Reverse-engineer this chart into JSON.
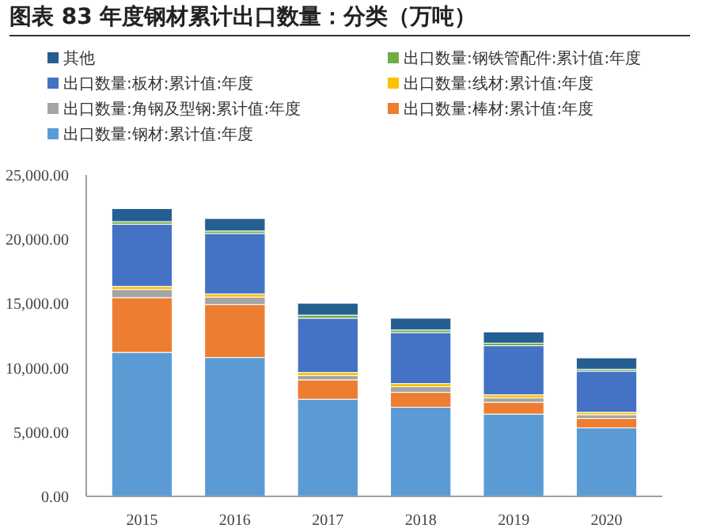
{
  "chart_data": {
    "type": "bar",
    "stacked": true,
    "title": "图表 83 年度钢材累计出口数量：分类（万吨）",
    "categories": [
      "2015",
      "2016",
      "2017",
      "2018",
      "2019",
      "2020"
    ],
    "series": [
      {
        "name": "出口数量:钢材:累计值:年度",
        "color": "#5b9bd5",
        "values": [
          11200,
          10800,
          7560,
          6930,
          6400,
          5330
        ]
      },
      {
        "name": "出口数量:棒材:累计值:年度",
        "color": "#ed7d31",
        "values": [
          4260,
          4120,
          1500,
          1160,
          920,
          730
        ]
      },
      {
        "name": "出口数量:角钢及型钢:累计值:年度",
        "color": "#a5a5a5",
        "values": [
          630,
          580,
          340,
          440,
          340,
          290
        ]
      },
      {
        "name": "出口数量:线材:累计值:年度",
        "color": "#ffc000",
        "values": [
          240,
          250,
          240,
          240,
          240,
          190
        ]
      },
      {
        "name": "出口数量:板材:累计值:年度",
        "color": "#4472c4",
        "values": [
          4840,
          4700,
          4220,
          3970,
          3820,
          3200
        ]
      },
      {
        "name": "出口数量:钢铁管配件:累计值:年度",
        "color": "#70ad47",
        "values": [
          200,
          190,
          240,
          200,
          200,
          150
        ]
      },
      {
        "name": "其他",
        "color": "#255e91",
        "values": [
          1010,
          970,
          920,
          920,
          870,
          880
        ]
      }
    ],
    "ylim": [
      0,
      25000
    ],
    "yticks": [
      {
        "value": 0,
        "label": "0.00"
      },
      {
        "value": 5000,
        "label": "5,000.00"
      },
      {
        "value": 10000,
        "label": "10,000.00"
      },
      {
        "value": 15000,
        "label": "15,000.00"
      },
      {
        "value": 20000,
        "label": "20,000.00"
      },
      {
        "value": 25000,
        "label": "25,000.00"
      }
    ],
    "grid": false,
    "legend": "top"
  }
}
